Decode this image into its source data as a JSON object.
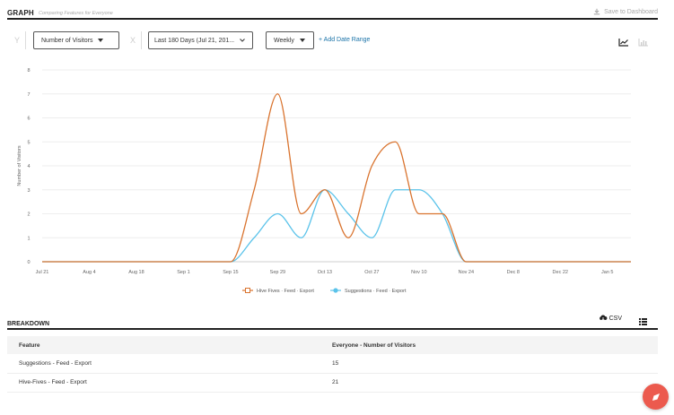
{
  "header": {
    "title": "GRAPH",
    "subtitle": "Comparing Features for Everyone",
    "save_label": "Save to Dashboard"
  },
  "controls": {
    "y_label": "Y",
    "x_label": "X",
    "metric": "Number of Visitors",
    "date_range": "Last 180 Days (Jul 21, 201...",
    "interval": "Weekly",
    "add_range": "+ Add Date Range"
  },
  "chart_data": {
    "type": "line",
    "ylabel": "Number of Visitors",
    "xlabel": "",
    "ylim": [
      0,
      8
    ],
    "yticks": [
      "0",
      "1",
      "2",
      "3",
      "4",
      "5",
      "6",
      "7",
      "8"
    ],
    "x_ticks": [
      "Jul 21",
      "Aug 4",
      "Aug 18",
      "Sep 1",
      "Sep 15",
      "Sep 29",
      "Oct 13",
      "Oct 27",
      "Nov 10",
      "Nov 24",
      "Dec 8",
      "Dec 22",
      "Jan 5"
    ],
    "x": [
      "Jul 21",
      "Jul 28",
      "Aug 4",
      "Aug 11",
      "Aug 18",
      "Aug 25",
      "Sep 1",
      "Sep 8",
      "Sep 15",
      "Sep 22",
      "Sep 29",
      "Oct 6",
      "Oct 13",
      "Oct 20",
      "Oct 27",
      "Nov 3",
      "Nov 10",
      "Nov 17",
      "Nov 24",
      "Dec 1",
      "Dec 8",
      "Dec 15",
      "Dec 22",
      "Dec 29",
      "Jan 5",
      "Jan 12"
    ],
    "grid": true,
    "legend_position": "bottom",
    "series": [
      {
        "name": "Hive Fives · Feed · Export",
        "color": "#d9732e",
        "values": [
          0,
          0,
          0,
          0,
          0,
          0,
          0,
          0,
          0,
          3,
          7,
          2,
          3,
          1,
          4,
          5,
          2,
          2,
          0,
          0,
          0,
          0,
          0,
          0,
          0,
          0
        ]
      },
      {
        "name": "Suggestions · Feed · Export",
        "color": "#5bc3ea",
        "values": [
          0,
          0,
          0,
          0,
          0,
          0,
          0,
          0,
          0,
          1,
          2,
          1,
          3,
          2,
          1,
          3,
          3,
          2,
          0,
          0,
          0,
          0,
          0,
          0,
          0,
          0
        ]
      }
    ]
  },
  "breakdown": {
    "title": "BREAKDOWN",
    "csv_label": "CSV",
    "columns": [
      "Feature",
      "Everyone - Number of Visitors"
    ],
    "rows": [
      {
        "feature": "Suggestions - Feed - Export",
        "value": "15"
      },
      {
        "feature": "Hive-Fives - Feed - Export",
        "value": "21"
      }
    ]
  }
}
